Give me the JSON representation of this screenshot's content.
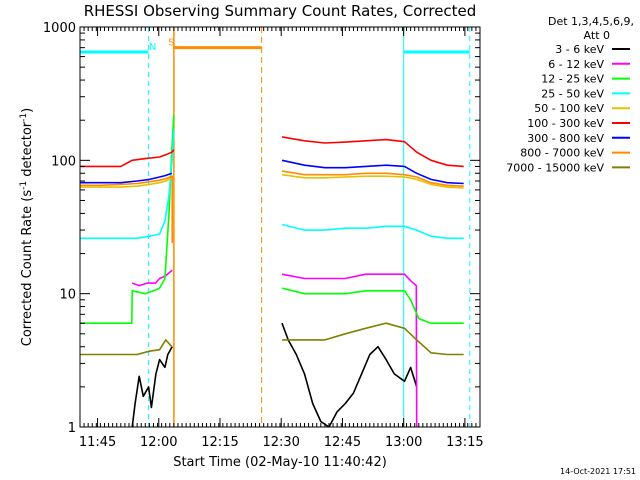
{
  "chart_data": {
    "type": "line",
    "title": "RHESSI Observing Summary Count Rates, Corrected",
    "xlabel": "Start Time (02-May-10 11:40:42)",
    "ylabel_main": "Corrected Count Rate (s",
    "ylabel_sup1": "-1",
    "ylabel_mid": " detector",
    "ylabel_sup2": "-1",
    "ylabel_end": ")",
    "yscale": "log",
    "ylim": [
      1,
      1000
    ],
    "xlim_minutes": [
      0,
      98
    ],
    "x_unit": "minutes since 11:40:42",
    "yticks": [
      {
        "value": 1,
        "label": "1"
      },
      {
        "value": 10,
        "label": "10"
      },
      {
        "value": 100,
        "label": "100"
      },
      {
        "value": 1000,
        "label": "1000"
      }
    ],
    "xticks": [
      {
        "value": 4.3,
        "label": "11:45"
      },
      {
        "value": 19.3,
        "label": "12:00"
      },
      {
        "value": 34.3,
        "label": "12:15"
      },
      {
        "value": 49.3,
        "label": "12:30"
      },
      {
        "value": 64.3,
        "label": "12:45"
      },
      {
        "value": 79.3,
        "label": "13:00"
      },
      {
        "value": 94.3,
        "label": "13:15"
      }
    ],
    "legend": {
      "placement": "right",
      "header": "Det 1,3,4,5,6,9,",
      "header2": "Att 0",
      "entries": [
        {
          "label": "3 - 6 keV",
          "color": "#000000"
        },
        {
          "label": "6 - 12 keV",
          "color": "#ff00ff"
        },
        {
          "label": "12 - 25 keV",
          "color": "#00ff00"
        },
        {
          "label": "25 - 50 keV",
          "color": "#00ffff"
        },
        {
          "label": "50 - 100 keV",
          "color": "#e8c000"
        },
        {
          "label": "100 - 300 keV",
          "color": "#ff0000"
        },
        {
          "label": "300 - 800 keV",
          "color": "#0000ff"
        },
        {
          "label": "800 - 7000 keV",
          "color": "#ff8c00"
        },
        {
          "label": "7000 - 15000 keV",
          "color": "#808000"
        }
      ]
    },
    "series": [
      {
        "name": "3 - 6 keV",
        "color": "#000000",
        "segments": [
          {
            "x": [
              12.8,
              13.5,
              14.5,
              15.5,
              16.8,
              17.5,
              18.6,
              19.5,
              20.8,
              21.5,
              22.6
            ],
            "y": [
              1,
              1.5,
              2.4,
              1.7,
              2.0,
              1.4,
              2.5,
              3.2,
              2.8,
              3.5,
              4.0
            ]
          },
          {
            "x": [
              49.5,
              51.0,
              53.0,
              55.0,
              57.0,
              59.0,
              61.0,
              63.0,
              65.0,
              67.0,
              69.0,
              71.0,
              73.0,
              75.0,
              77.0,
              79.5,
              81.0,
              82.5
            ],
            "y": [
              6.0,
              4.5,
              3.5,
              2.5,
              1.5,
              1.1,
              1.0,
              1.3,
              1.5,
              1.8,
              2.5,
              3.5,
              4.0,
              3.2,
              2.5,
              2.2,
              2.8,
              2.0
            ]
          }
        ]
      },
      {
        "name": "6 - 12 keV",
        "color": "#ff00ff",
        "segments": [
          {
            "x": [
              12.8,
              14.5,
              16.5,
              18.5,
              19.5,
              20.8,
              22.6
            ],
            "y": [
              12,
              11.5,
              12,
              12,
              13,
              13.5,
              15
            ]
          },
          {
            "x": [
              49.5,
              55.0,
              60.0,
              65.0,
              70.0,
              75.0,
              79.5,
              81.0,
              82.4,
              82.5
            ],
            "y": [
              14,
              13,
              13,
              13,
              14,
              14,
              14,
              12.5,
              11.5,
              1
            ]
          }
        ]
      },
      {
        "name": "12 - 25 keV",
        "color": "#00ff00",
        "segments": [
          {
            "x": [
              0,
              5,
              10,
              12.7,
              12.8,
              16,
              18,
              19.5,
              20.8,
              21.8,
              22.5,
              23.0
            ],
            "y": [
              6.0,
              6.0,
              6.0,
              6.0,
              10.5,
              10,
              10.5,
              11,
              13,
              40,
              120,
              220
            ]
          },
          {
            "x": [
              49.5,
              55.0,
              60.0,
              65.0,
              70.0,
              75.0,
              79.5,
              81.0,
              83.0,
              86.0,
              90.0,
              94.0
            ],
            "y": [
              11,
              10,
              10,
              10,
              10.5,
              10.5,
              10.5,
              9,
              6.5,
              6,
              6,
              6
            ]
          }
        ]
      },
      {
        "name": "25 - 50 keV",
        "color": "#00ffff",
        "segments": [
          {
            "x": [
              0,
              5,
              10,
              14,
              17,
              19.5,
              20.8,
              21.8,
              22.5,
              23.0
            ],
            "y": [
              26,
              26,
              26,
              26,
              27,
              28,
              35,
              55,
              95,
              170
            ]
          },
          {
            "x": [
              49.5,
              55.0,
              60.0,
              65.0,
              70.0,
              75.0,
              79.5,
              82.5,
              86.0,
              90.0,
              94.0
            ],
            "y": [
              33,
              30,
              30,
              31,
              31,
              32,
              32,
              30,
              27,
              26,
              26
            ]
          }
        ]
      },
      {
        "name": "50 - 100 keV",
        "color": "#e8c000",
        "segments": [
          {
            "x": [
              0,
              5,
              10,
              14,
              17,
              19.5,
              21,
              22.5
            ],
            "y": [
              63,
              63,
              63,
              64,
              66,
              68,
              70,
              74
            ]
          },
          {
            "x": [
              49.5,
              55.0,
              60.0,
              65.0,
              70.0,
              75.0,
              79.5,
              82.5,
              86.0,
              90.0,
              94.0
            ],
            "y": [
              78,
              74,
              74,
              75,
              76,
              76,
              75,
              72,
              66,
              63,
              62
            ]
          }
        ]
      },
      {
        "name": "100 - 300 keV",
        "color": "#ff0000",
        "segments": [
          {
            "x": [
              0,
              5,
              10,
              12.8,
              16,
              19.5,
              21,
              22.5,
              23.0
            ],
            "y": [
              90,
              90,
              90,
              100,
              103,
              106,
              110,
              115,
              120
            ]
          },
          {
            "x": [
              49.5,
              55.0,
              60.0,
              65.0,
              70.0,
              75.0,
              79.5,
              82.5,
              86.0,
              90.0,
              94.0
            ],
            "y": [
              150,
              140,
              135,
              137,
              140,
              143,
              138,
              115,
              100,
              92,
              90
            ]
          }
        ]
      },
      {
        "name": "300 - 800 keV",
        "color": "#0000ff",
        "segments": [
          {
            "x": [
              0,
              5,
              10,
              14,
              17,
              19.5,
              21,
              22.5
            ],
            "y": [
              68,
              68,
              68,
              70,
              72,
              75,
              77,
              80
            ]
          },
          {
            "x": [
              49.5,
              55.0,
              60.0,
              65.0,
              70.0,
              75.0,
              79.5,
              82.5,
              86.0,
              90.0,
              94.0
            ],
            "y": [
              100,
              92,
              88,
              88,
              90,
              92,
              90,
              80,
              72,
              68,
              67
            ]
          }
        ]
      },
      {
        "name": "800 - 7000 keV",
        "color": "#ff8c00",
        "segments": [
          {
            "x": [
              0,
              5,
              10,
              14,
              17,
              19.5,
              21,
              22.6,
              22.6
            ],
            "y": [
              65,
              65,
              66,
              67,
              69,
              71,
              73,
              76,
              24
            ]
          },
          {
            "x": [
              49.5,
              55.0,
              60.0,
              65.0,
              70.0,
              75.0,
              79.5,
              82.5,
              86.0,
              90.0,
              94.0
            ],
            "y": [
              83,
              78,
              78,
              78,
              80,
              80,
              78,
              75,
              68,
              65,
              64
            ]
          }
        ]
      },
      {
        "name": "7000 - 15000 keV",
        "color": "#808000",
        "segments": [
          {
            "x": [
              0,
              5,
              10,
              14,
              17,
              19.5,
              21,
              22.5
            ],
            "y": [
              3.5,
              3.5,
              3.5,
              3.5,
              3.7,
              3.8,
              4.5,
              4.0
            ]
          },
          {
            "x": [
              49.5,
              55.0,
              60.0,
              65.0,
              70.0,
              75.0,
              79.5,
              82.5,
              86.0,
              90.0,
              94.0
            ],
            "y": [
              4.5,
              4.5,
              4.5,
              5,
              5.5,
              6,
              5.5,
              4.5,
              3.6,
              3.5,
              3.5
            ]
          }
        ]
      }
    ],
    "annotations": [
      {
        "label": "N",
        "x": 17.8,
        "y": 650,
        "color": "#00ffff"
      },
      {
        "label": "S",
        "x": 22.4,
        "y": 700,
        "color": "#ff8c00"
      }
    ],
    "markers": {
      "night_lines_cyan_solid": [
        0,
        79.3
      ],
      "night_lines_cyan_dashed": [
        16.8,
        95.5
      ],
      "night_bars_cyan": [
        [
          0,
          16.8
        ],
        [
          79.3,
          95.5
        ]
      ],
      "saa_lines_orange_solid": [
        23.0
      ],
      "saa_lines_orange_dashed": [
        44.5
      ],
      "saa_bar_orange": [
        23.0,
        44.5
      ]
    },
    "timestamp": "14-Oct-2021 17:51"
  }
}
